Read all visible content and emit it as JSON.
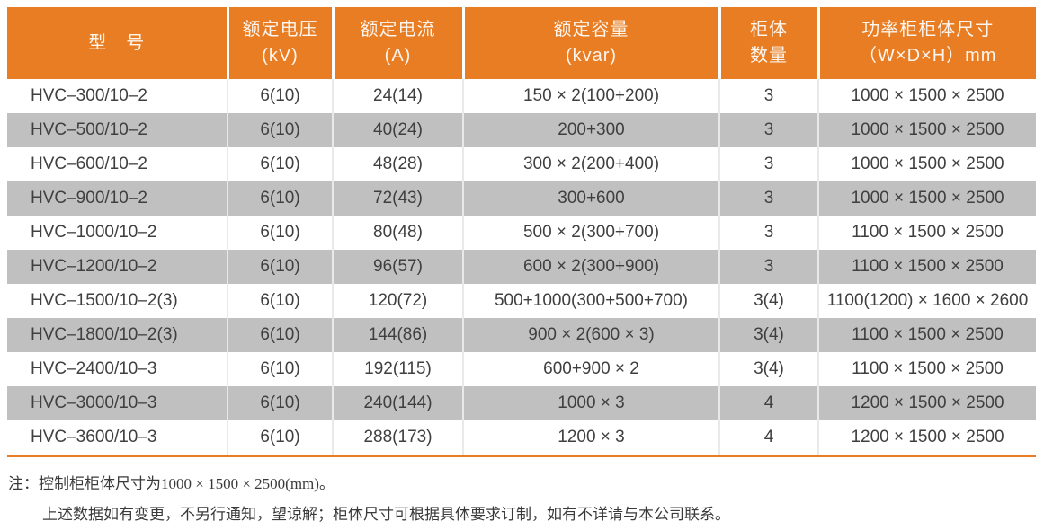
{
  "colors": {
    "header_orange": "#e87d23",
    "stripe_gray": "#c1c0c0",
    "body_text": "#3f3f3f",
    "header_text": "#ffffff"
  },
  "table": {
    "columns": [
      {
        "line1": "型　号",
        "line2": ""
      },
      {
        "line1": "额定电压",
        "line2": "(kV)"
      },
      {
        "line1": "额定电流",
        "line2": "(A)"
      },
      {
        "line1": "额定容量",
        "line2": "(kvar)"
      },
      {
        "line1": "柜体",
        "line2": "数量"
      },
      {
        "line1": "功率柜柜体尺寸",
        "line2": "（W×D×H）mm"
      }
    ],
    "rows": [
      {
        "model": "HVC–300/10–2",
        "voltage": "6(10)",
        "current": "24(14)",
        "capacity": "150 × 2(100+200)",
        "cabinets": "3",
        "dimensions": "1000 × 1500 × 2500"
      },
      {
        "model": "HVC–500/10–2",
        "voltage": "6(10)",
        "current": "40(24)",
        "capacity": "200+300",
        "cabinets": "3",
        "dimensions": "1000 × 1500 × 2500"
      },
      {
        "model": "HVC–600/10–2",
        "voltage": "6(10)",
        "current": "48(28)",
        "capacity": "300 × 2(200+400)",
        "cabinets": "3",
        "dimensions": "1000 × 1500 × 2500"
      },
      {
        "model": "HVC–900/10–2",
        "voltage": "6(10)",
        "current": "72(43)",
        "capacity": "300+600",
        "cabinets": "3",
        "dimensions": "1000 × 1500 × 2500"
      },
      {
        "model": "HVC–1000/10–2",
        "voltage": "6(10)",
        "current": "80(48)",
        "capacity": "500 × 2(300+700)",
        "cabinets": "3",
        "dimensions": "1100 × 1500 × 2500"
      },
      {
        "model": "HVC–1200/10–2",
        "voltage": "6(10)",
        "current": "96(57)",
        "capacity": "600 × 2(300+900)",
        "cabinets": "3",
        "dimensions": "1100 × 1500 × 2500"
      },
      {
        "model": "HVC–1500/10–2(3)",
        "voltage": "6(10)",
        "current": "120(72)",
        "capacity": "500+1000(300+500+700)",
        "cabinets": "3(4)",
        "dimensions": "1100(1200) × 1600 × 2600"
      },
      {
        "model": "HVC–1800/10–2(3)",
        "voltage": "6(10)",
        "current": "144(86)",
        "capacity": "900 × 2(600 × 3)",
        "cabinets": "3(4)",
        "dimensions": "1100 × 1500 × 2500"
      },
      {
        "model": "HVC–2400/10–3",
        "voltage": "6(10)",
        "current": "192(115)",
        "capacity": "600+900 × 2",
        "cabinets": "3(4)",
        "dimensions": "1100 × 1500 × 2500"
      },
      {
        "model": "HVC–3000/10–3",
        "voltage": "6(10)",
        "current": "240(144)",
        "capacity": "1000 × 3",
        "cabinets": "4",
        "dimensions": "1200 × 1500 × 2500"
      },
      {
        "model": "HVC–3600/10–3",
        "voltage": "6(10)",
        "current": "288(173)",
        "capacity": "1200 × 3",
        "cabinets": "4",
        "dimensions": "1200 × 1500 × 2500"
      }
    ]
  },
  "notes": {
    "prefix": "注：",
    "line1": "控制柜柜体尺寸为1000 × 1500 × 2500(mm)。",
    "line2": "上述数据如有变更，不另行通知，望谅解；柜体尺寸可根据具体要求订制，如有不详请与本公司联系。"
  }
}
